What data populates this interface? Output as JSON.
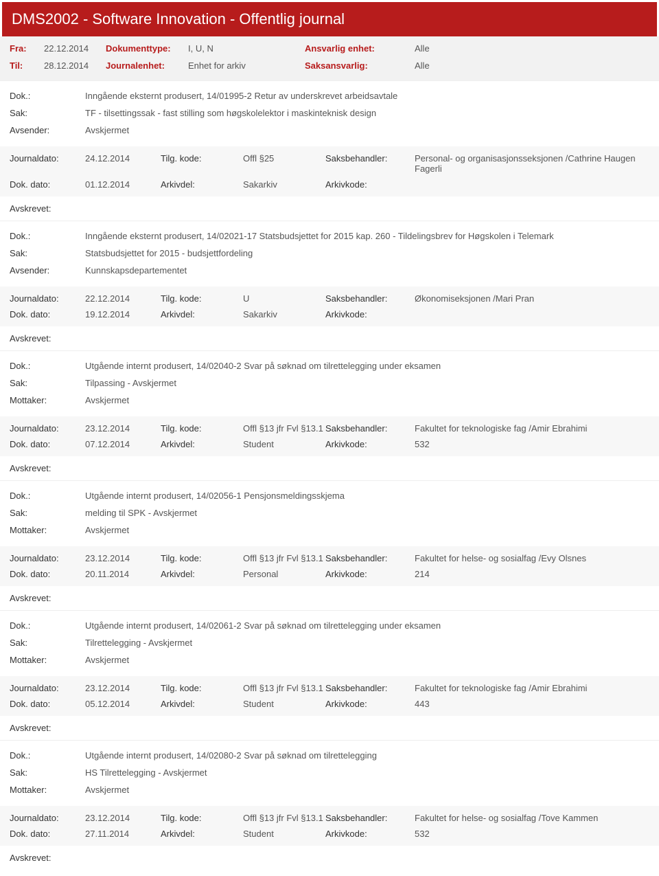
{
  "title": "DMS2002 - Software Innovation - Offentlig journal",
  "header": {
    "fra_lbl": "Fra:",
    "fra_val": "22.12.2014",
    "til_lbl": "Til:",
    "til_val": "28.12.2014",
    "doktype_lbl": "Dokumenttype:",
    "doktype_val": "I, U, N",
    "journalenhet_lbl": "Journalenhet:",
    "journalenhet_val": "Enhet for arkiv",
    "ansvarlig_lbl": "Ansvarlig enhet:",
    "ansvarlig_val": "Alle",
    "saksansvarlig_lbl": "Saksansvarlig:",
    "saksansvarlig_val": "Alle"
  },
  "labels": {
    "dok": "Dok.:",
    "sak": "Sak:",
    "avsender": "Avsender:",
    "mottaker": "Mottaker:",
    "journaldato": "Journaldato:",
    "dokdato": "Dok. dato:",
    "tilgkode": "Tilg. kode:",
    "arkivdel": "Arkivdel:",
    "saksbehandler": "Saksbehandler:",
    "arkivkode": "Arkivkode:",
    "avskrevet": "Avskrevet:"
  },
  "entries": [
    {
      "dok": "Inngående eksternt produsert, 14/01995-2 Retur av underskrevet arbeidsavtale",
      "sak": "TF - tilsettingssak - fast stilling som høgskolelektor i maskinteknisk design",
      "party_lbl": "Avsender:",
      "party_val": "Avskjermet",
      "journaldato": "24.12.2014",
      "tilgkode": "Offl §25",
      "saksbehandler": "Personal- og organisasjonsseksjonen /Cathrine Haugen Fagerli",
      "dokdato": "01.12.2014",
      "arkivdel": "Sakarkiv",
      "arkivkode": ""
    },
    {
      "dok": "Inngående eksternt produsert, 14/02021-17 Statsbudsjettet for 2015 kap. 260 - Tildelingsbrev for Høgskolen i Telemark",
      "sak": "Statsbudsjettet for 2015 - budsjettfordeling",
      "party_lbl": "Avsender:",
      "party_val": "Kunnskapsdepartementet",
      "journaldato": "22.12.2014",
      "tilgkode": "U",
      "saksbehandler": "Økonomiseksjonen /Mari Pran",
      "dokdato": "19.12.2014",
      "arkivdel": "Sakarkiv",
      "arkivkode": ""
    },
    {
      "dok": "Utgående internt produsert, 14/02040-2 Svar på søknad om tilrettelegging under eksamen",
      "sak": "Tilpassing - Avskjermet",
      "party_lbl": "Mottaker:",
      "party_val": "Avskjermet",
      "journaldato": "23.12.2014",
      "tilgkode": "Offl §13 jfr Fvl §13.1",
      "saksbehandler": "Fakultet for teknologiske fag /Amir Ebrahimi",
      "dokdato": "07.12.2014",
      "arkivdel": "Student",
      "arkivkode": "532"
    },
    {
      "dok": "Utgående internt produsert, 14/02056-1 Pensjonsmeldingsskjema",
      "sak": "melding til SPK - Avskjermet",
      "party_lbl": "Mottaker:",
      "party_val": "Avskjermet",
      "journaldato": "23.12.2014",
      "tilgkode": "Offl §13 jfr Fvl §13.1",
      "saksbehandler": "Fakultet for helse- og sosialfag /Evy Olsnes",
      "dokdato": "20.11.2014",
      "arkivdel": "Personal",
      "arkivkode": "214"
    },
    {
      "dok": "Utgående internt produsert, 14/02061-2 Svar på søknad om tilrettelegging under eksamen",
      "sak": "Tilrettelegging - Avskjermet",
      "party_lbl": "Mottaker:",
      "party_val": "Avskjermet",
      "journaldato": "23.12.2014",
      "tilgkode": "Offl §13 jfr Fvl §13.1",
      "saksbehandler": "Fakultet for teknologiske fag /Amir Ebrahimi",
      "dokdato": "05.12.2014",
      "arkivdel": "Student",
      "arkivkode": "443"
    },
    {
      "dok": "Utgående internt produsert, 14/02080-2 Svar på søknad om tilrettelegging",
      "sak": "HS Tilrettelegging - Avskjermet",
      "party_lbl": "Mottaker:",
      "party_val": "Avskjermet",
      "journaldato": "23.12.2014",
      "tilgkode": "Offl §13 jfr Fvl §13.1",
      "saksbehandler": "Fakultet for helse- og sosialfag /Tove Kammen",
      "dokdato": "27.11.2014",
      "arkivdel": "Student",
      "arkivkode": "532"
    }
  ]
}
